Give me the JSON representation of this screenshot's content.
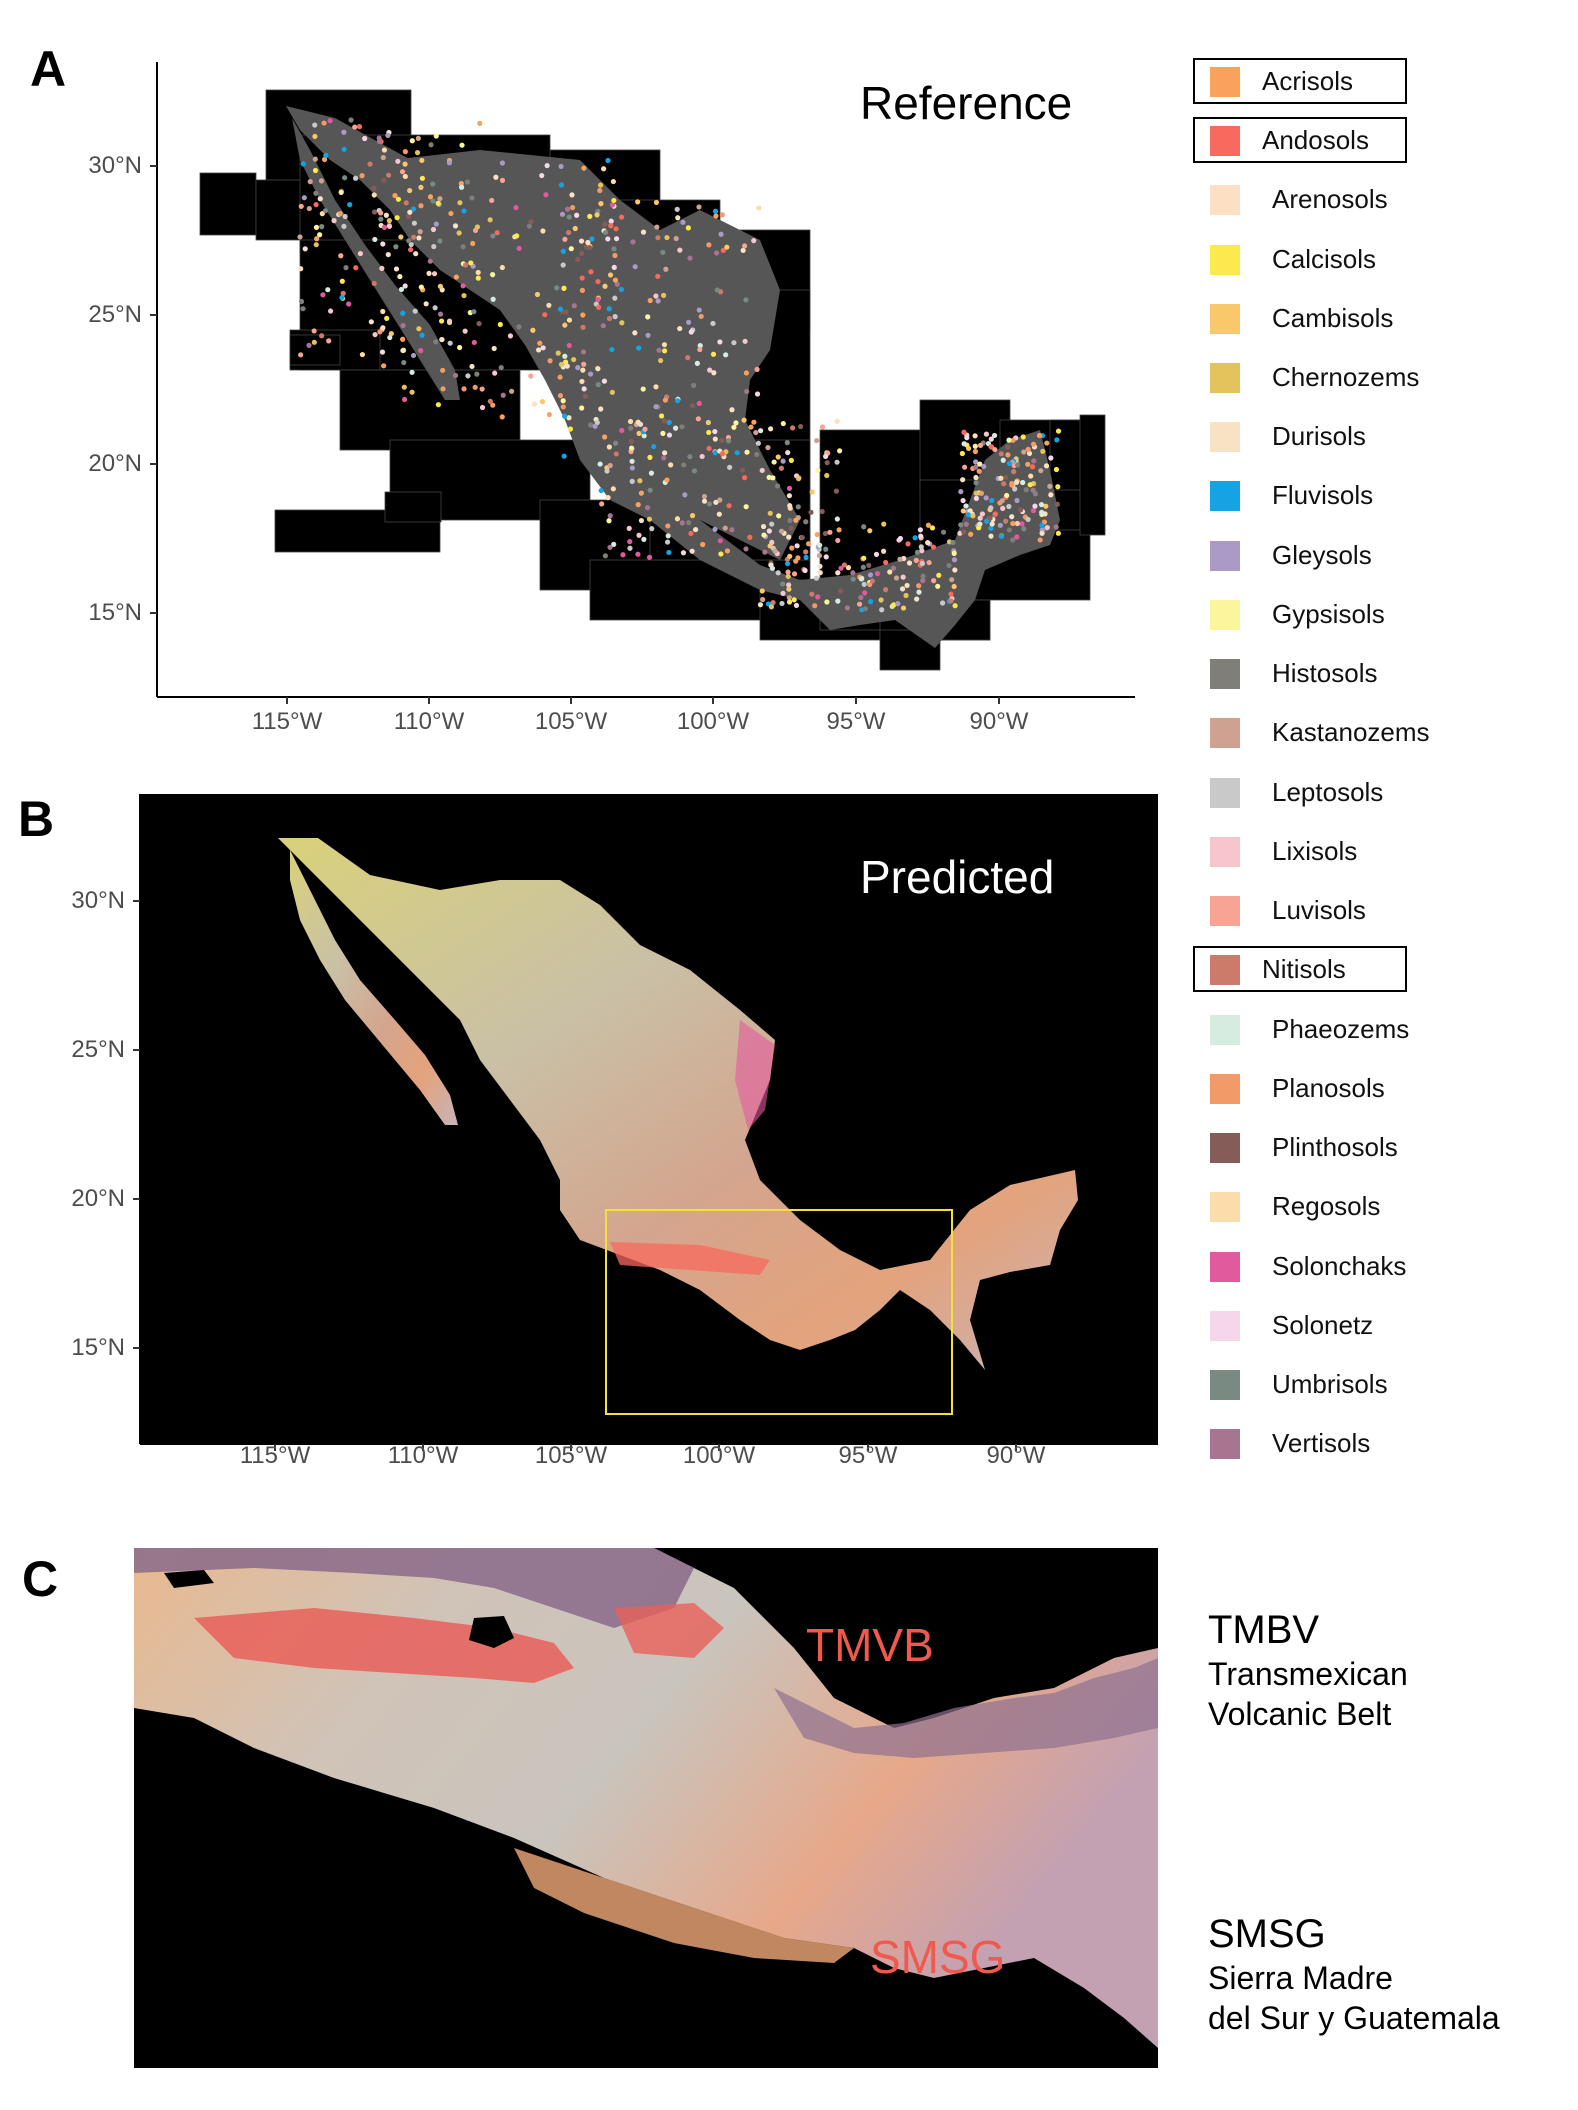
{
  "panels": {
    "a": {
      "letter": "A",
      "title": "Reference"
    },
    "b": {
      "letter": "B",
      "title": "Predicted"
    },
    "c": {
      "letter": "C",
      "tmvb_label": "TMVB",
      "smsg_label": "SMSG"
    }
  },
  "axes": {
    "lat_labels": [
      "30°N",
      "25°N",
      "20°N",
      "15°N"
    ],
    "lon_labels": [
      "115°W",
      "110°W",
      "105°W",
      "100°W",
      "95°W",
      "90°W"
    ]
  },
  "legend": [
    {
      "name": "Acrisols",
      "color": "#f9a25c",
      "boxed": true
    },
    {
      "name": "Andosols",
      "color": "#f76a5d",
      "boxed": true
    },
    {
      "name": "Arenosols",
      "color": "#fbe0c3",
      "boxed": false
    },
    {
      "name": "Calcisols",
      "color": "#fbe94d",
      "boxed": false
    },
    {
      "name": "Cambisols",
      "color": "#f9c86a",
      "boxed": false
    },
    {
      "name": "Chernozems",
      "color": "#e3c45c",
      "boxed": false
    },
    {
      "name": "Durisols",
      "color": "#f7e3c4",
      "boxed": false
    },
    {
      "name": "Fluvisols",
      "color": "#16a3e3",
      "boxed": false
    },
    {
      "name": "Gleysols",
      "color": "#a99bc6",
      "boxed": false
    },
    {
      "name": "Gypsisols",
      "color": "#fbf59e",
      "boxed": false
    },
    {
      "name": "Histosols",
      "color": "#7f7e78",
      "boxed": false
    },
    {
      "name": "Kastanozems",
      "color": "#cfa190",
      "boxed": false
    },
    {
      "name": "Leptosols",
      "color": "#c9c9c9",
      "boxed": false
    },
    {
      "name": "Lixisols",
      "color": "#f6c5cd",
      "boxed": false
    },
    {
      "name": "Luvisols",
      "color": "#f7a592",
      "boxed": false
    },
    {
      "name": "Nitisols",
      "color": "#cc7a6a",
      "boxed": true
    },
    {
      "name": "Phaeozems",
      "color": "#d7ece0",
      "boxed": false
    },
    {
      "name": "Planosols",
      "color": "#f39a69",
      "boxed": false
    },
    {
      "name": "Plinthosols",
      "color": "#865c59",
      "boxed": false
    },
    {
      "name": "Regosols",
      "color": "#fbdcab",
      "boxed": false
    },
    {
      "name": "Solonchaks",
      "color": "#e25a9e",
      "boxed": false
    },
    {
      "name": "Solonetz",
      "color": "#f6d7ea",
      "boxed": false
    },
    {
      "name": "Umbrisols",
      "color": "#788a82",
      "boxed": false
    },
    {
      "name": "Vertisols",
      "color": "#a87590",
      "boxed": false
    }
  ],
  "notes": {
    "tmbv_title": "TMBV",
    "tmbv_line1": "Transmexican",
    "tmbv_line2": "Volcanic Belt",
    "smsg_title": "SMSG",
    "smsg_line1": "Sierra Madre",
    "smsg_line2": "del Sur y Guatemala"
  }
}
